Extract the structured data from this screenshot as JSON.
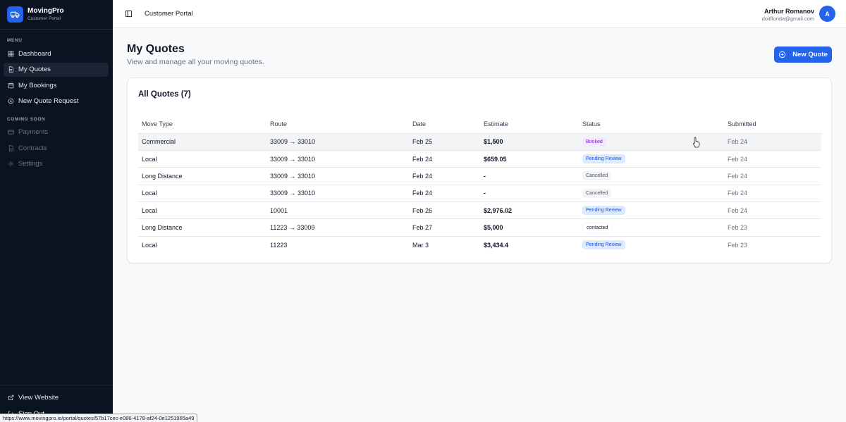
{
  "brand": {
    "name": "MovingPro",
    "subtitle": "Customer Portal"
  },
  "sidebar": {
    "menu_title": "MENU",
    "items": [
      {
        "label": "Dashboard",
        "icon": "grid-icon"
      },
      {
        "label": "My Quotes",
        "icon": "document-icon",
        "active": true
      },
      {
        "label": "My Bookings",
        "icon": "calendar-icon"
      },
      {
        "label": "New Quote Request",
        "icon": "plus-circle-icon"
      }
    ],
    "coming_soon_title": "COMING SOON",
    "coming_soon": [
      {
        "label": "Payments",
        "icon": "credit-card-icon"
      },
      {
        "label": "Contracts",
        "icon": "file-sign-icon"
      },
      {
        "label": "Settings",
        "icon": "gear-icon"
      }
    ],
    "bottom": [
      {
        "label": "View Website",
        "icon": "external-link-icon"
      },
      {
        "label": "Sign Out",
        "icon": "logout-icon"
      }
    ]
  },
  "topbar": {
    "title": "Customer Portal"
  },
  "user": {
    "name": "Arthur Romanov",
    "email": "doitflorida@gmail.com",
    "initial": "A"
  },
  "page": {
    "title": "My Quotes",
    "subtitle": "View and manage all your moving quotes.",
    "new_quote_label": "New Quote"
  },
  "quotes": {
    "title": "All Quotes (7)",
    "columns": [
      "Move Type",
      "Route",
      "Date",
      "Estimate",
      "Status",
      "Submitted"
    ],
    "rows": [
      {
        "move_type": "Commercial",
        "route": "33009 → 33010",
        "date": "Feb 25",
        "estimate": "$1,500",
        "status": "Booked",
        "submitted": "Feb 24"
      },
      {
        "move_type": "Local",
        "route": "33009 → 33010",
        "date": "Feb 24",
        "estimate": "$659.05",
        "status": "Pending Review",
        "submitted": "Feb 24"
      },
      {
        "move_type": "Long Distance",
        "route": "33009 → 33010",
        "date": "Feb 24",
        "estimate": "-",
        "status": "Cancelled",
        "submitted": "Feb 24"
      },
      {
        "move_type": "Local",
        "route": "33009 → 33010",
        "date": "Feb 24",
        "estimate": "-",
        "status": "Cancelled",
        "submitted": "Feb 24"
      },
      {
        "move_type": "Local",
        "route": "10001",
        "date": "Feb 26",
        "estimate": "$2,976.02",
        "status": "Pending Review",
        "submitted": "Feb 24"
      },
      {
        "move_type": "Long Distance",
        "route": "11223 → 33009",
        "date": "Feb 27",
        "estimate": "$5,000",
        "status": "contacted",
        "submitted": "Feb 23"
      },
      {
        "move_type": "Local",
        "route": "11223",
        "date": "Mar 3",
        "estimate": "$3,434.4",
        "status": "Pending Review",
        "submitted": "Feb 23"
      }
    ]
  },
  "status_bar": {
    "url": "https://www.movingpro.io/portal/quotes/57b17cec-e086-4178-af24-0e1251965a49"
  },
  "colors": {
    "accent": "#2563eb",
    "sidebar_bg": "#0b1220",
    "booked": "#7e22ce",
    "pending": "#1d4ed8"
  }
}
